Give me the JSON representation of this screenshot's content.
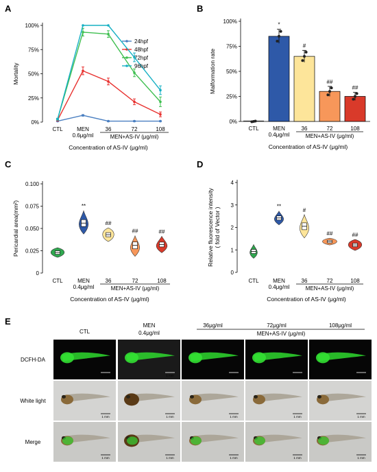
{
  "chart_data": [
    {
      "panel": "A",
      "type": "line",
      "xlabel": "Concentration of  AS-IV (μg/ml)",
      "ylabel": "Mortality",
      "ylim": [
        0,
        100
      ],
      "yticks": [
        "0%",
        "25%",
        "50%",
        "75%",
        "100%"
      ],
      "categories": [
        "CTL",
        "MEN",
        "36",
        "72",
        "108"
      ],
      "category_sublabel": "0.6μg/ml",
      "group_label": "MEN+AS-IV (μg/ml)",
      "legend_position": "top-right",
      "series": [
        {
          "name": "24hpf",
          "color": "#4a7fc1",
          "values": [
            1,
            7,
            1,
            1,
            1
          ],
          "errors": [
            0.5,
            0.8,
            0.5,
            0.5,
            0.5
          ]
        },
        {
          "name": "48hpf",
          "color": "#e8312f",
          "values": [
            2,
            53,
            42,
            21,
            8
          ],
          "errors": [
            0.8,
            4,
            3.5,
            3,
            2.5
          ]
        },
        {
          "name": "72hpf",
          "color": "#3fbf50",
          "values": [
            3,
            93,
            91,
            51,
            21
          ],
          "errors": [
            1,
            4,
            3.5,
            4,
            5
          ]
        },
        {
          "name": "96hpf",
          "color": "#17b0c4",
          "values": [
            3,
            100,
            100,
            67,
            33
          ],
          "errors": [
            1,
            0,
            0,
            4.5,
            4.5
          ]
        }
      ]
    },
    {
      "panel": "B",
      "type": "bar",
      "xlabel": "Concentration of  AS-IV (μg/ml)",
      "ylabel": "Malformation rate",
      "ylim": [
        0,
        100
      ],
      "yticks": [
        "0%",
        "25%",
        "50%",
        "75%",
        "100%"
      ],
      "categories": [
        "CTL",
        "MEN",
        "36",
        "72",
        "108"
      ],
      "category_sublabel": "0.4μg/ml",
      "group_label": "MEN+AS-IV (μg/ml)",
      "values": [
        0,
        85,
        65,
        30,
        25
      ],
      "errors": [
        0.5,
        7,
        6,
        5,
        4
      ],
      "colors": [
        "#2a2a2a",
        "#2e59a8",
        "#fde59a",
        "#f7975a",
        "#d93a2a"
      ],
      "significance": [
        "",
        "*",
        "#",
        "##",
        "##"
      ]
    },
    {
      "panel": "C",
      "type": "violin",
      "xlabel": "Concentration of  AS-IV (μg/ml)",
      "ylabel": "Pericardial area(mm²)",
      "ylim": [
        0,
        0.1
      ],
      "yticks": [
        "0",
        "0.025",
        "0.050",
        "0.075",
        "0.100"
      ],
      "categories": [
        "CTL",
        "MEN",
        "36",
        "72",
        "108"
      ],
      "category_sublabel": "0.4μg/ml",
      "group_label": "MEN+AS-IV (μg/ml)",
      "medians": [
        0.023,
        0.056,
        0.043,
        0.031,
        0.032
      ],
      "colors": [
        "#2fa84f",
        "#2e59a8",
        "#fde59a",
        "#f7975a",
        "#d93a2a"
      ],
      "significance": [
        "",
        "**",
        "##",
        "##",
        "##"
      ]
    },
    {
      "panel": "D",
      "type": "violin",
      "xlabel": "Concentration of  AS-IV (μg/ml)",
      "ylabel": "Relative fluorescence intensity",
      "ylabel2": "( fold of Vector )",
      "ylim": [
        0,
        4
      ],
      "yticks": [
        "0",
        "1",
        "2",
        "3",
        "4"
      ],
      "categories": [
        "CTL",
        "MEN",
        "36",
        "72",
        "108"
      ],
      "category_sublabel": "0.4μg/ml",
      "group_label": "MEN+AS-IV (μg/ml)",
      "medians": [
        0.93,
        2.42,
        2.05,
        1.37,
        1.22
      ],
      "colors": [
        "#2fa84f",
        "#2e59a8",
        "#fde59a",
        "#f7975a",
        "#d93a2a"
      ],
      "significance": [
        "",
        "**",
        "#",
        "##",
        "##"
      ]
    }
  ],
  "panel_e": {
    "label": "E",
    "columns": [
      "CTL",
      "MEN",
      "36μg/ml",
      "72μg/ml",
      "108μg/ml"
    ],
    "men_sublabel": "0.4μg/ml",
    "group_label": "MEN+AS-IV (μg/ml)",
    "rows": [
      "DCFH-DA",
      "White light",
      "Merge"
    ],
    "scale_bar": "1 mm"
  }
}
